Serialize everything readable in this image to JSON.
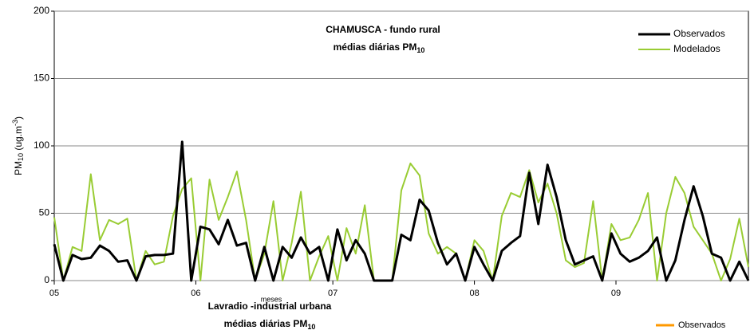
{
  "chart_data": [
    {
      "type": "line",
      "title": "CHAMUSCA - fundo rural",
      "subtitle": "médias diárias PM",
      "subtitle_subscript": "10",
      "y_label": [
        "PM",
        "10",
        " (ug.m",
        "-3",
        ")"
      ],
      "x_label": "meses",
      "x": [
        0,
        2,
        4,
        6,
        8,
        10,
        12,
        14,
        16,
        18,
        20,
        22,
        24,
        26,
        28,
        30,
        32,
        34,
        36,
        38,
        40,
        42,
        44,
        46,
        48,
        50,
        52,
        54,
        56,
        58,
        60,
        62,
        64,
        66,
        68,
        70,
        72,
        74,
        76,
        78,
        80,
        82,
        84,
        86,
        88,
        90,
        92,
        94,
        96,
        98,
        100,
        102,
        104,
        106,
        108,
        110,
        112,
        114,
        116,
        118,
        120,
        122,
        124,
        126,
        128,
        130,
        132,
        134,
        136,
        138,
        140,
        142,
        144,
        146,
        148,
        150,
        152
      ],
      "series": [
        {
          "name": "Observados",
          "color": "#000000",
          "values": [
            27,
            0,
            19,
            16,
            17,
            26,
            22,
            14,
            15,
            0,
            18,
            19,
            19,
            20,
            103,
            0,
            40,
            38,
            27,
            45,
            26,
            28,
            0,
            25,
            0,
            25,
            17,
            32,
            20,
            25,
            0,
            38,
            15,
            30,
            20,
            0,
            0,
            0,
            34,
            30,
            60,
            52,
            28,
            12,
            20,
            0,
            25,
            12,
            0,
            22,
            28,
            33,
            80,
            42,
            86,
            62,
            30,
            12,
            15,
            18,
            0,
            35,
            20,
            14,
            17,
            22,
            32,
            0,
            15,
            45,
            70,
            48,
            20,
            17,
            0,
            14,
            0
          ]
        },
        {
          "name": "Modelados",
          "color": "#99cc33",
          "values": [
            47,
            0,
            25,
            22,
            79,
            30,
            45,
            42,
            46,
            0,
            22,
            12,
            14,
            48,
            68,
            76,
            0,
            75,
            45,
            62,
            81,
            45,
            0,
            20,
            59,
            0,
            28,
            66,
            0,
            18,
            33,
            0,
            39,
            20,
            56,
            0,
            0,
            0,
            67,
            87,
            78,
            35,
            20,
            25,
            20,
            0,
            30,
            22,
            0,
            48,
            65,
            62,
            82,
            58,
            72,
            50,
            15,
            10,
            13,
            59,
            0,
            42,
            30,
            32,
            45,
            65,
            0,
            50,
            77,
            65,
            40,
            30,
            20,
            0,
            16,
            46,
            10
          ]
        }
      ],
      "xlim": [
        0,
        152
      ],
      "xticks": [
        {
          "value": 0,
          "label": "05"
        },
        {
          "value": 31,
          "label": "06"
        },
        {
          "value": 61,
          "label": "07"
        },
        {
          "value": 92,
          "label": "08"
        },
        {
          "value": 123,
          "label": "09"
        }
      ],
      "ylim": [
        0,
        200
      ],
      "yticks": [
        0,
        50,
        100,
        150,
        200
      ],
      "grid": true,
      "legend": "upper right"
    },
    {
      "type": "line",
      "title": "Lavradio -industrial urbana",
      "subtitle": "médias diárias PM",
      "subtitle_subscript": "10",
      "series": [
        {
          "name": "Observados",
          "color": "#ff9900"
        }
      ]
    }
  ]
}
